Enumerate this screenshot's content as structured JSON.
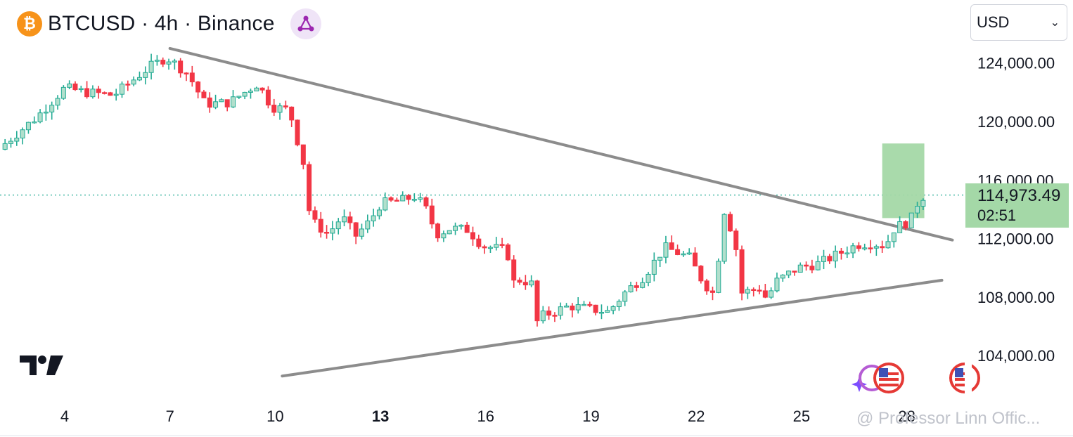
{
  "header": {
    "icon_symbol": "₿",
    "title": "BTCUSD · 4h · Binance",
    "ideas_icon": "share-nodes-icon"
  },
  "currency": {
    "selected": "USD"
  },
  "last_price": {
    "value": "114,973.49",
    "countdown": "02:51"
  },
  "watermark": "@ Professor Linn Offic...",
  "colors": {
    "up": "#22ab94",
    "up_fill": "#b2dfcc",
    "down": "#f23645",
    "trendline": "#8c8c8c",
    "highlight": "#a4d8a7"
  },
  "chart_data": {
    "type": "candlestick",
    "title": "BTCUSD · 4h · Binance",
    "x_ticks": [
      {
        "day": 4,
        "label": "4"
      },
      {
        "day": 7,
        "label": "7"
      },
      {
        "day": 10,
        "label": "10"
      },
      {
        "day": 13,
        "label": "13",
        "bold": true
      },
      {
        "day": 16,
        "label": "16"
      },
      {
        "day": 19,
        "label": "19"
      },
      {
        "day": 22,
        "label": "22"
      },
      {
        "day": 25,
        "label": "25"
      },
      {
        "day": 28,
        "label": "28"
      }
    ],
    "y_ticks": [
      {
        "value": 124000,
        "label": "124,000.00"
      },
      {
        "value": 120000,
        "label": "120,000.00"
      },
      {
        "value": 116000,
        "label": "116,000.00"
      },
      {
        "value": 112000,
        "label": "112,000.00"
      },
      {
        "value": 108000,
        "label": "108,000.00"
      },
      {
        "value": 104000,
        "label": "104,000.00"
      }
    ],
    "ylim": [
      101000,
      127000
    ],
    "last_price": 114973.49,
    "key_closes": [
      {
        "day": 2.3,
        "close": 118500
      },
      {
        "day": 3.2,
        "close": 120300
      },
      {
        "day": 4.0,
        "close": 122300
      },
      {
        "day": 4.6,
        "close": 122000
      },
      {
        "day": 5.4,
        "close": 121800
      },
      {
        "day": 6.4,
        "close": 123700
      },
      {
        "day": 6.9,
        "close": 124400
      },
      {
        "day": 7.5,
        "close": 123300
      },
      {
        "day": 8.0,
        "close": 121200
      },
      {
        "day": 8.7,
        "close": 121300
      },
      {
        "day": 9.5,
        "close": 122600
      },
      {
        "day": 9.9,
        "close": 121000
      },
      {
        "day": 10.4,
        "close": 120800
      },
      {
        "day": 10.8,
        "close": 117200
      },
      {
        "day": 11.0,
        "close": 113300
      },
      {
        "day": 11.5,
        "close": 112300
      },
      {
        "day": 11.9,
        "close": 113500
      },
      {
        "day": 12.3,
        "close": 112200
      },
      {
        "day": 12.7,
        "close": 113200
      },
      {
        "day": 13.0,
        "close": 114400
      },
      {
        "day": 13.6,
        "close": 114600
      },
      {
        "day": 14.0,
        "close": 114900
      },
      {
        "day": 14.3,
        "close": 114000
      },
      {
        "day": 14.6,
        "close": 112300
      },
      {
        "day": 15.0,
        "close": 112700
      },
      {
        "day": 15.5,
        "close": 112600
      },
      {
        "day": 15.9,
        "close": 111500
      },
      {
        "day": 16.6,
        "close": 111200
      },
      {
        "day": 16.8,
        "close": 109000
      },
      {
        "day": 17.0,
        "close": 109200
      },
      {
        "day": 17.3,
        "close": 108900
      },
      {
        "day": 17.5,
        "close": 105800
      },
      {
        "day": 17.6,
        "close": 106700
      },
      {
        "day": 18.4,
        "close": 107400
      },
      {
        "day": 18.9,
        "close": 107200
      },
      {
        "day": 19.5,
        "close": 107000
      },
      {
        "day": 20.0,
        "close": 108400
      },
      {
        "day": 20.5,
        "close": 109400
      },
      {
        "day": 21.1,
        "close": 111400
      },
      {
        "day": 21.8,
        "close": 110700
      },
      {
        "day": 22.2,
        "close": 109000
      },
      {
        "day": 22.5,
        "close": 108200
      },
      {
        "day": 22.8,
        "close": 113900
      },
      {
        "day": 23.1,
        "close": 111900
      },
      {
        "day": 23.3,
        "close": 108300
      },
      {
        "day": 23.8,
        "close": 108600
      },
      {
        "day": 24.0,
        "close": 107900
      },
      {
        "day": 24.3,
        "close": 109100
      },
      {
        "day": 24.9,
        "close": 110000
      },
      {
        "day": 25.5,
        "close": 110300
      },
      {
        "day": 26.0,
        "close": 110900
      },
      {
        "day": 26.6,
        "close": 111600
      },
      {
        "day": 27.0,
        "close": 111700
      },
      {
        "day": 27.4,
        "close": 111500
      },
      {
        "day": 27.6,
        "close": 112600
      },
      {
        "day": 27.8,
        "close": 112900
      },
      {
        "day": 28.1,
        "close": 113200
      },
      {
        "day": 28.3,
        "close": 114400
      },
      {
        "day": 28.5,
        "close": 114973.49
      }
    ],
    "trendlines": [
      {
        "name": "descending-resistance",
        "from": {
          "day": 7.0,
          "price": 125000
        },
        "to": {
          "day": 29.3,
          "price": 111900
        }
      },
      {
        "name": "ascending-support",
        "from": {
          "day": 10.2,
          "price": 102600
        },
        "to": {
          "day": 29.0,
          "price": 109150
        }
      }
    ],
    "target_zone": {
      "day_from": 27.3,
      "day_to": 28.5,
      "price_from": 113400,
      "price_to": 118500
    }
  }
}
